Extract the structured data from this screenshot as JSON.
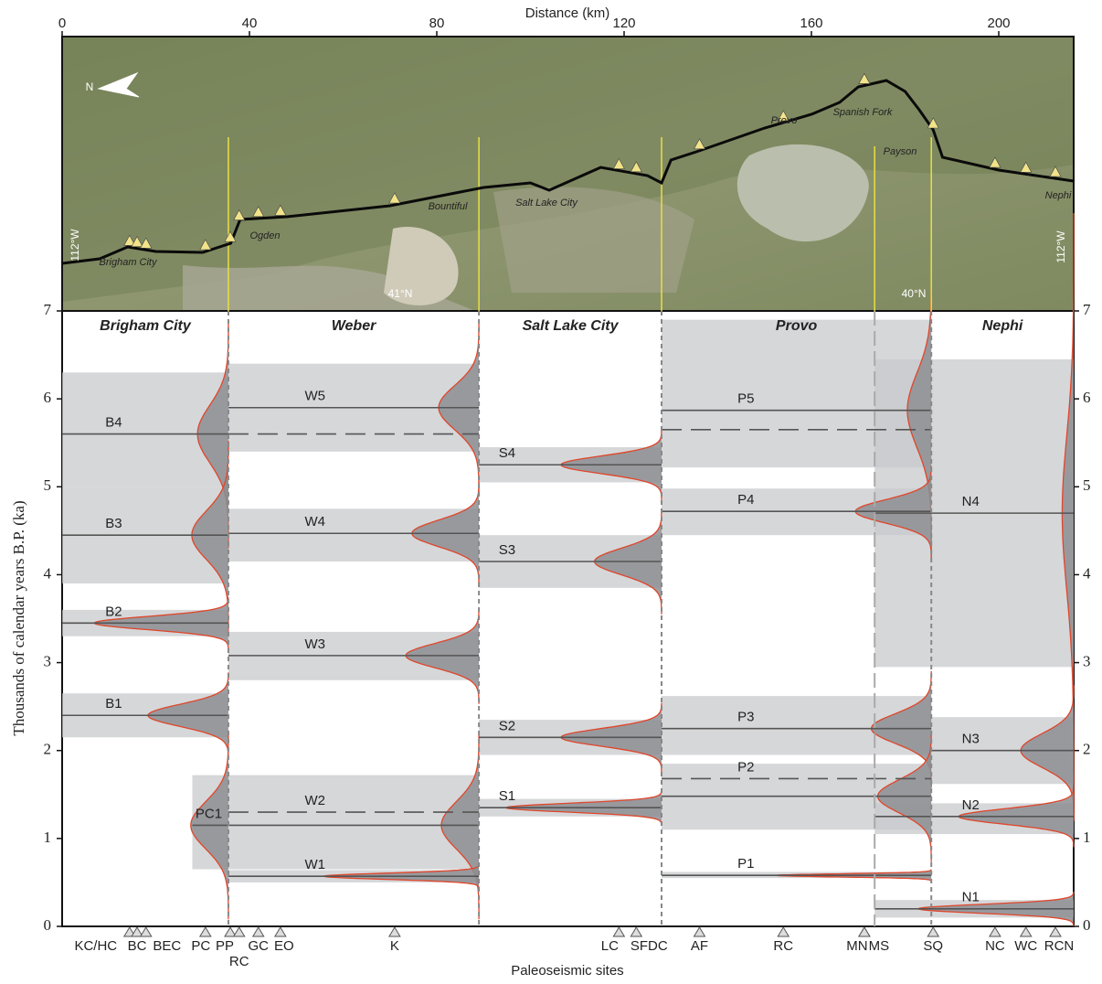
{
  "chart_data": {
    "type": "timeline",
    "x_label": "Distance (km)",
    "xlim": [
      0,
      216
    ],
    "xticks": [
      0,
      40,
      80,
      120,
      160,
      200
    ],
    "y_label": "Thousands of calendar years B.P. (ka)",
    "ylim": [
      0,
      7
    ],
    "yticks": [
      0,
      1,
      2,
      3,
      4,
      5,
      6,
      7
    ],
    "sites_label": "Paleoseismic sites",
    "segments": [
      {
        "name": "Brigham City",
        "range": [
          0,
          35.5
        ]
      },
      {
        "name": "Weber",
        "range": [
          35.5,
          89
        ]
      },
      {
        "name": "Salt Lake City",
        "range": [
          89,
          128
        ]
      },
      {
        "name": "Provo",
        "range": [
          128,
          185.6
        ]
      },
      {
        "name": "Nephi",
        "range": [
          185.6,
          216
        ]
      }
    ],
    "overlap_boundary": 173.5,
    "events": [
      {
        "name": "B4",
        "segment": 0,
        "mean": 5.6,
        "band": [
          5.0,
          6.3
        ],
        "band_x": [
          0,
          35.5
        ]
      },
      {
        "name": "B3",
        "segment": 0,
        "mean": 4.45,
        "band": [
          3.9,
          5.0
        ],
        "band_x": [
          0,
          35.5
        ]
      },
      {
        "name": "B2",
        "segment": 0,
        "mean": 3.45,
        "band": [
          3.3,
          3.6
        ],
        "band_x": [
          0,
          35.5
        ]
      },
      {
        "name": "B1",
        "segment": 0,
        "mean": 2.4,
        "band": [
          2.15,
          2.65
        ],
        "band_x": [
          0,
          35.5
        ]
      },
      {
        "name": "PC1",
        "segment": 0,
        "mean": 1.15,
        "band": [
          0.65,
          1.72
        ],
        "band_x": [
          27.8,
          35.5
        ]
      },
      {
        "name": "W5",
        "segment": 1,
        "mean": 5.9,
        "dashed": 5.6,
        "band": [
          5.4,
          6.4
        ],
        "band_x": [
          35.5,
          89
        ]
      },
      {
        "name": "W4",
        "segment": 1,
        "mean": 4.47,
        "band": [
          4.15,
          4.75
        ],
        "band_x": [
          35.5,
          89
        ]
      },
      {
        "name": "W3",
        "segment": 1,
        "mean": 3.08,
        "band": [
          2.8,
          3.35
        ],
        "band_x": [
          35.5,
          89
        ]
      },
      {
        "name": "W2",
        "segment": 1,
        "mean": 1.15,
        "dashed": 1.3,
        "band": [
          0.65,
          1.72
        ],
        "band_x": [
          35.5,
          89
        ]
      },
      {
        "name": "W1",
        "segment": 1,
        "mean": 0.57,
        "band": [
          0.5,
          0.64
        ],
        "band_x": [
          35.5,
          89
        ]
      },
      {
        "name": "S4",
        "segment": 2,
        "mean": 5.25,
        "band": [
          5.05,
          5.45
        ],
        "band_x": [
          89,
          128
        ]
      },
      {
        "name": "S3",
        "segment": 2,
        "mean": 4.15,
        "band": [
          3.85,
          4.45
        ],
        "band_x": [
          89,
          128
        ]
      },
      {
        "name": "S2",
        "segment": 2,
        "mean": 2.15,
        "band": [
          1.95,
          2.35
        ],
        "band_x": [
          89,
          128
        ]
      },
      {
        "name": "S1",
        "segment": 2,
        "mean": 1.35,
        "band": [
          1.25,
          1.45
        ],
        "band_x": [
          89,
          128
        ]
      },
      {
        "name": "P5",
        "segment": 3,
        "mean": 5.87,
        "dashed": 5.65,
        "band": [
          5.22,
          6.9
        ],
        "band_x": [
          128,
          185.6
        ]
      },
      {
        "name": "P4",
        "segment": 3,
        "mean": 4.72,
        "band": [
          4.45,
          4.98
        ],
        "band_x": [
          128,
          185.6
        ]
      },
      {
        "name": "P3",
        "segment": 3,
        "mean": 2.25,
        "band": [
          1.95,
          2.62
        ],
        "band_x": [
          128,
          185.6
        ]
      },
      {
        "name": "P2",
        "segment": 3,
        "mean": 1.48,
        "dashed": 1.68,
        "band": [
          1.1,
          1.85
        ],
        "band_x": [
          128,
          185.6
        ]
      },
      {
        "name": "P1",
        "segment": 3,
        "mean": 0.58,
        "band": [
          0.55,
          0.62
        ],
        "band_x": [
          128,
          185.6
        ]
      },
      {
        "name": "N4",
        "segment": 4,
        "mean": 4.7,
        "band": [
          2.95,
          6.45
        ],
        "band_x": [
          173.5,
          216
        ]
      },
      {
        "name": "N3",
        "segment": 4,
        "mean": 2.0,
        "band": [
          1.62,
          2.38
        ],
        "band_x": [
          185.6,
          216
        ]
      },
      {
        "name": "N2",
        "segment": 4,
        "mean": 1.25,
        "band": [
          1.05,
          1.4
        ],
        "band_x": [
          173.5,
          216
        ]
      },
      {
        "name": "N1",
        "segment": 4,
        "mean": 0.2,
        "band": [
          0.1,
          0.3
        ],
        "band_x": [
          173.5,
          216
        ]
      }
    ],
    "sites": [
      {
        "name": "KC/HC",
        "km": 14.4
      },
      {
        "name": "BC",
        "km": 16.0
      },
      {
        "name": "BEC",
        "km": 17.9
      },
      {
        "name": "PC",
        "km": 30.6
      },
      {
        "name": "PP",
        "km": 35.9
      },
      {
        "name": "RC",
        "km": 37.8
      },
      {
        "name": "GC",
        "km": 41.9
      },
      {
        "name": "EO",
        "km": 46.6
      },
      {
        "name": "K",
        "km": 71.0
      },
      {
        "name": "LC",
        "km": 118.9
      },
      {
        "name": "SFDC",
        "km": 122.6
      },
      {
        "name": "AF",
        "km": 136.1
      },
      {
        "name": "RC",
        "km": 154.0
      },
      {
        "name": "MN",
        "km": 171.3
      },
      {
        "name": "MS",
        "km": 171.3
      },
      {
        "name": "SQ",
        "km": 186.0
      },
      {
        "name": "NC",
        "km": 199.2
      },
      {
        "name": "WC",
        "km": 205.8
      },
      {
        "name": "RCN",
        "km": 212.1
      }
    ],
    "map_labels": [
      "Brigham City",
      "Ogden",
      "Bountiful",
      "Salt Lake City",
      "Provo",
      "Spanish Fork",
      "Payson",
      "Nephi",
      "41°N",
      "40°N",
      "112°W",
      "112°W",
      "N"
    ]
  }
}
